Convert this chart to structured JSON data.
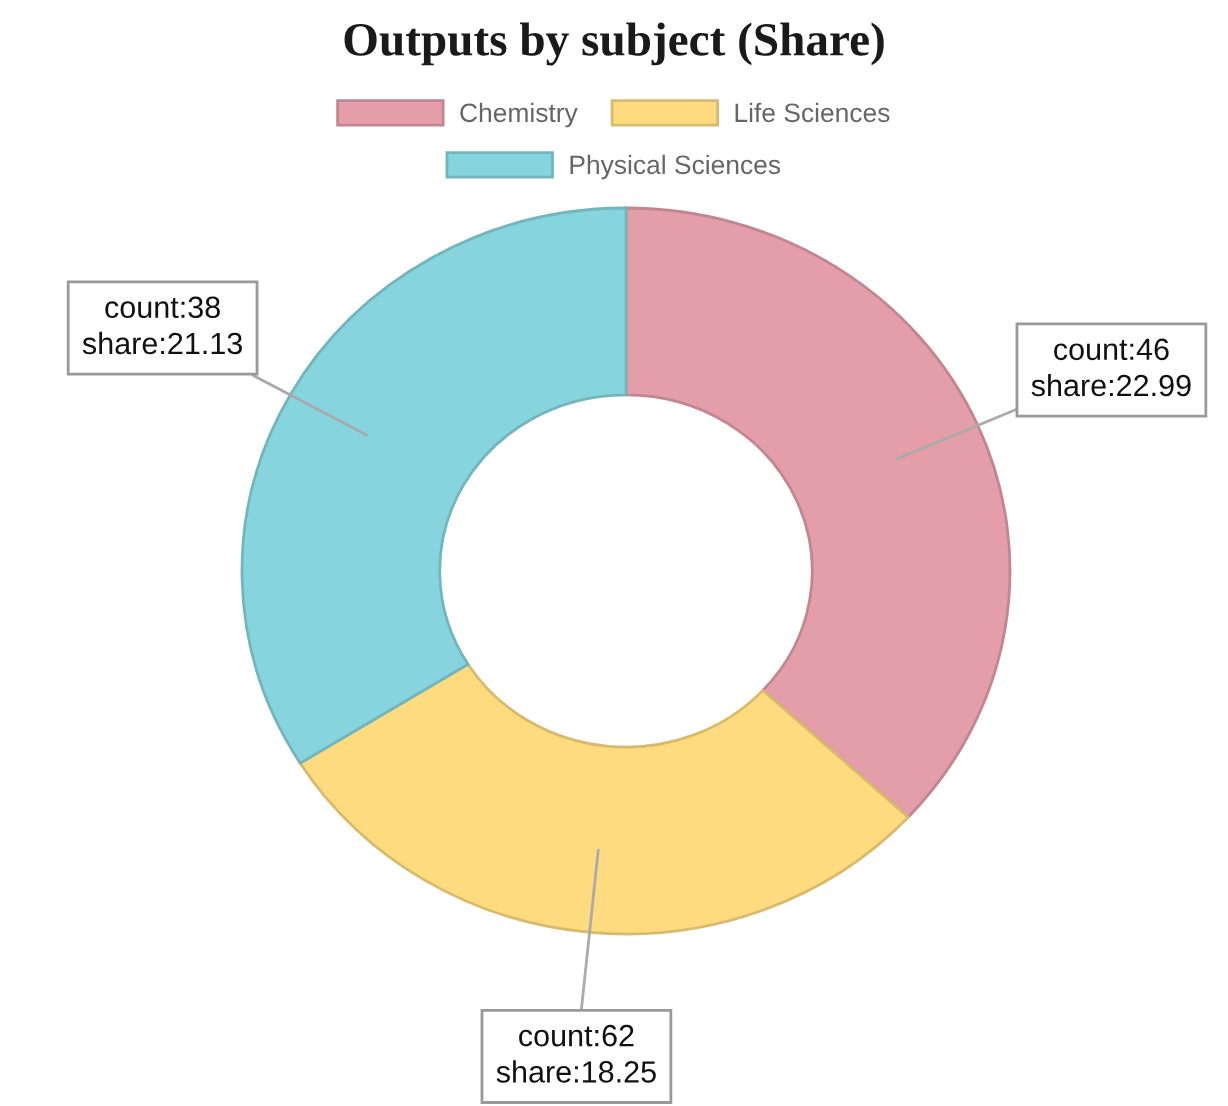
{
  "chart_data": {
    "type": "donut",
    "title": "Outputs by subject (Share)",
    "categories": [
      "Chemistry",
      "Life Sciences",
      "Physical Sciences"
    ],
    "values": [
      22.99,
      18.25,
      21.13
    ],
    "colors": [
      "#e39eaa",
      "#fddb7e",
      "#86d5de"
    ],
    "value_labels": [
      "count:46\nshare:22.99",
      "count:62\nshare:18.25",
      "count:38\nshare:21.13"
    ],
    "legend": "top"
  }
}
